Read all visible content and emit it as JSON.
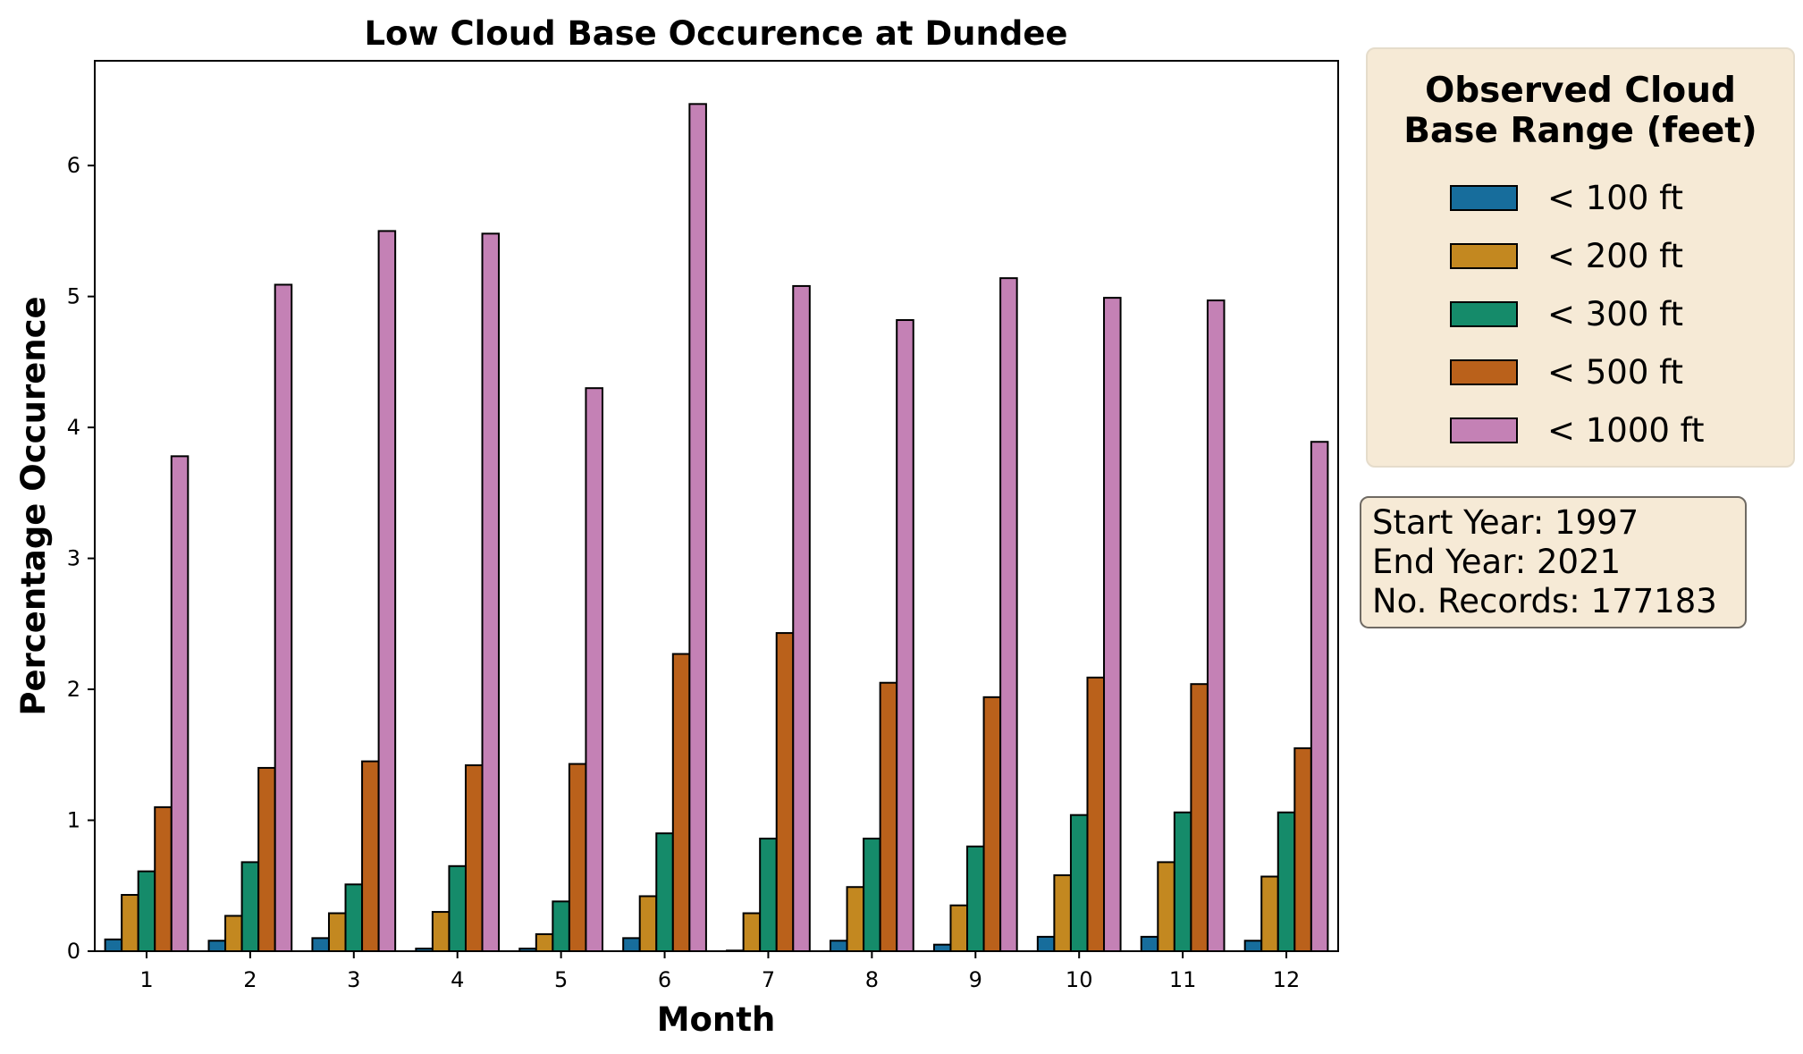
{
  "chart_data": {
    "type": "bar",
    "title": "Low Cloud Base Occurence at Dundee",
    "xlabel": "Month",
    "ylabel": "Percentage Occurence",
    "ylim": [
      0,
      6.8
    ],
    "yticks": [
      0,
      1,
      2,
      3,
      4,
      5,
      6
    ],
    "categories": [
      "1",
      "2",
      "3",
      "4",
      "5",
      "6",
      "7",
      "8",
      "9",
      "10",
      "11",
      "12"
    ],
    "legend_title": "Observed Cloud\nBase Range (feet)",
    "series": [
      {
        "name": "< 100 ft",
        "color": "#176d9c",
        "values": [
          0.09,
          0.08,
          0.1,
          0.02,
          0.02,
          0.1,
          0.005,
          0.08,
          0.05,
          0.11,
          0.11,
          0.08
        ]
      },
      {
        "name": "< 200 ft",
        "color": "#c38820",
        "values": [
          0.43,
          0.27,
          0.29,
          0.3,
          0.13,
          0.42,
          0.29,
          0.49,
          0.35,
          0.58,
          0.68,
          0.57
        ]
      },
      {
        "name": "< 300 ft",
        "color": "#158b6a",
        "values": [
          0.61,
          0.68,
          0.51,
          0.65,
          0.38,
          0.9,
          0.86,
          0.86,
          0.8,
          1.04,
          1.06,
          1.06
        ]
      },
      {
        "name": "< 500 ft",
        "color": "#ba611b",
        "values": [
          1.1,
          1.4,
          1.45,
          1.42,
          1.43,
          2.27,
          2.43,
          2.05,
          1.94,
          2.09,
          2.04,
          1.55
        ]
      },
      {
        "name": "< 1000 ft",
        "color": "#c481b5",
        "values": [
          3.78,
          5.09,
          5.5,
          5.48,
          4.3,
          6.47,
          5.08,
          4.82,
          5.14,
          4.99,
          4.97,
          3.89
        ]
      }
    ]
  },
  "info": {
    "start_year": "Start Year: 1997",
    "end_year": "End Year: 2021",
    "records": "No. Records: 177183"
  }
}
